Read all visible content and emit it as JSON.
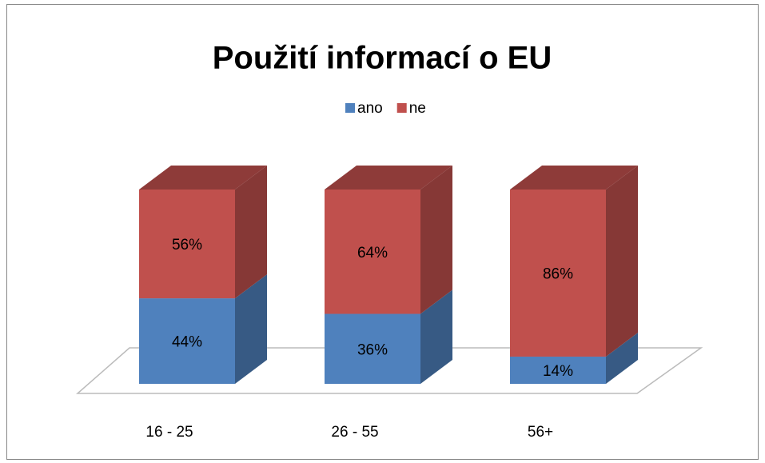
{
  "chart_data": {
    "type": "bar3d-stacked",
    "title": "Použití informací o EU",
    "categories": [
      "16 - 25",
      "26 - 55",
      "56+"
    ],
    "series": [
      {
        "name": "ano",
        "color": "#4f81bd",
        "values": [
          44,
          36,
          14
        ],
        "value_labels": [
          "44%",
          "36%",
          "14%"
        ]
      },
      {
        "name": "ne",
        "color": "#c0504d",
        "values": [
          56,
          64,
          86
        ],
        "value_labels": [
          "56%",
          "64%",
          "86%"
        ]
      }
    ],
    "ylim": [
      0,
      100
    ],
    "legend": "top"
  }
}
